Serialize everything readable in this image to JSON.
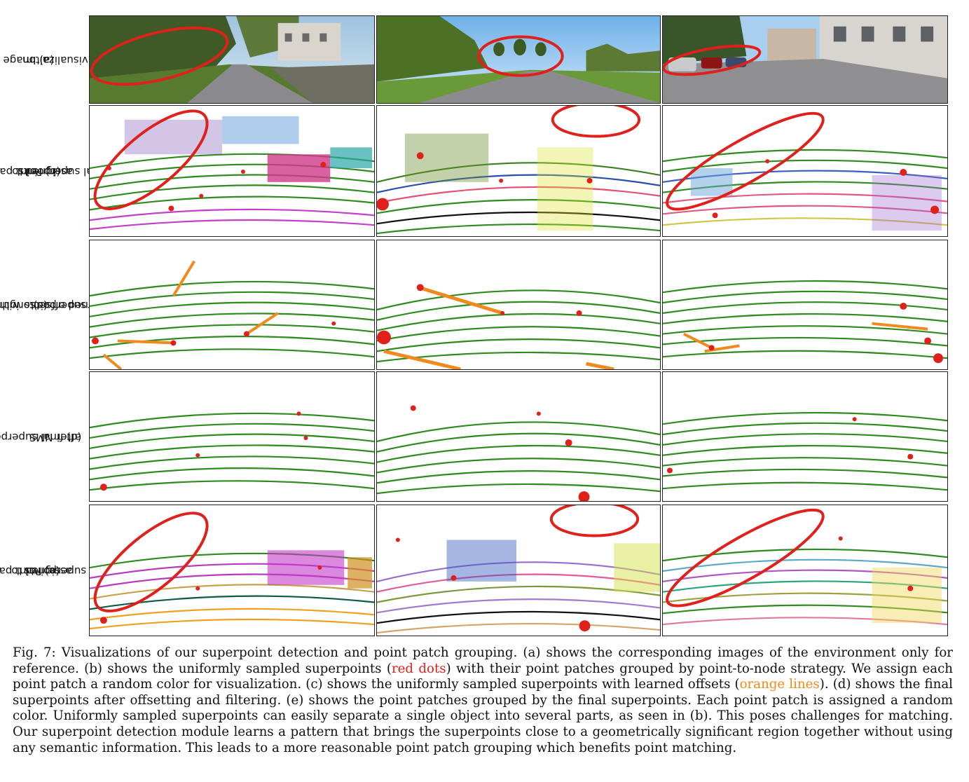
{
  "figure": {
    "row_labels": [
      {
        "line1": "(a) Image",
        "line2": "visualizaiton"
      },
      {
        "line1": "(b) Point patches",
        "line2": "assigned to",
        "line3": "orignal superpoints"
      },
      {
        "line1": "(c) originnal",
        "line2": "superpoints with",
        "line3": "learned offsets"
      },
      {
        "line1": "(d) final superpoints",
        "line2": "after NMS"
      },
      {
        "line1": "(e) Point patches",
        "line2": "assigned to",
        "line3": "final superpoints"
      }
    ],
    "columns": 3
  },
  "caption": {
    "part1": "Fig. 7: Visualizations of our superpoint detection and point patch grouping. (a) shows the corresponding images of the environment only for reference. (b) shows the uniformly sampled superpoints (",
    "red_text": "red dots",
    "part2": ") with their point patches grouped by point-to-node strategy. We assign each point patch a random color for visualization. (c) shows the uniformly sampled superpoints with learned offsets (",
    "orange_text": "orange lines",
    "part3": "). (d) shows the final superpoints after offsetting and filtering. (e) shows the point patches grouped by the final superpoints. Each point patch is assigned a random color. Uniformly sampled superpoints can easily separate a single object into several parts, as seen in (b). This poses challenges for matching. Our superpoint detection module learns a pattern that brings the superpoints close to a geometrically significant region together without using any semantic information. This leads to a more reasonable point patch grouping which benefits point matching."
  },
  "colors": {
    "highlight_red": "#e0201b",
    "offset_orange": "#f08a1c",
    "point_green": "#2e8b1e"
  }
}
